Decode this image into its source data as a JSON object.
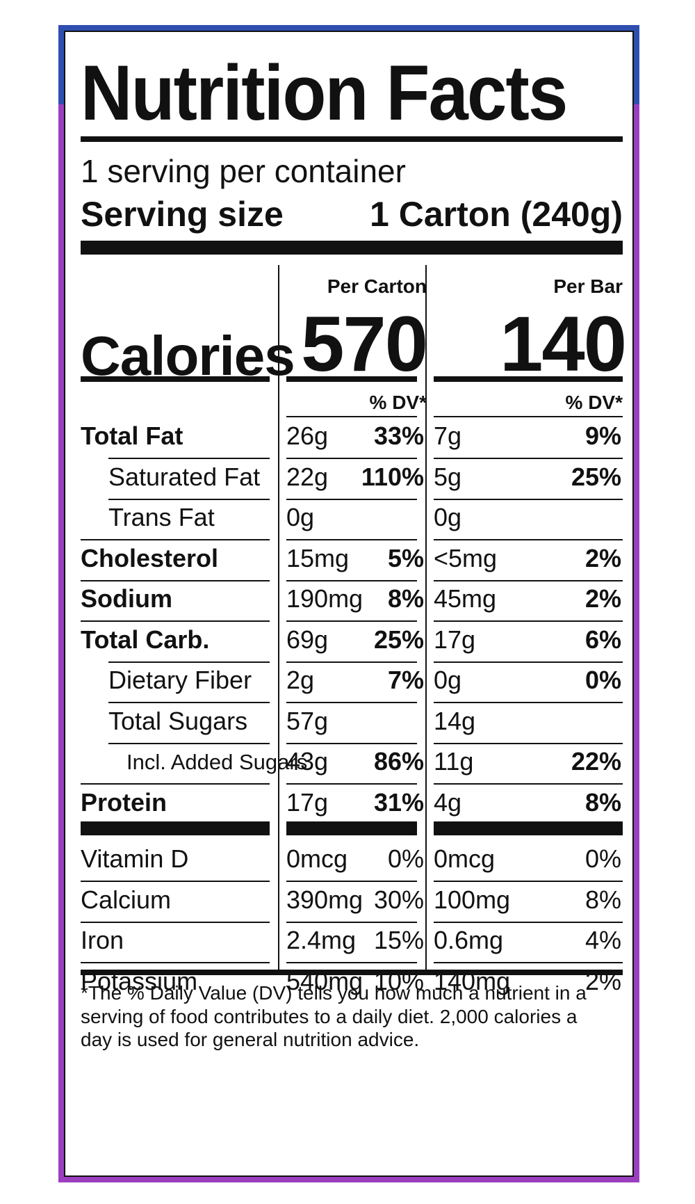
{
  "title": "Nutrition Facts",
  "servings_per_container": "1 serving per container",
  "serving_size": {
    "label": "Serving size",
    "value": "1 Carton (240g)"
  },
  "columns": [
    {
      "heading": "Per Carton",
      "calories": "570",
      "dv_heading": "% DV*"
    },
    {
      "heading": "Per Bar",
      "calories": "140",
      "dv_heading": "% DV*"
    }
  ],
  "calories_label": "Calories",
  "nutrients": [
    {
      "label": "Total Fat",
      "bold": true,
      "indent": 0,
      "carton": {
        "amount": "26g",
        "dv": "33%"
      },
      "bar": {
        "amount": "7g",
        "dv": "9%"
      }
    },
    {
      "label": "Saturated Fat",
      "bold": false,
      "indent": 1,
      "carton": {
        "amount": "22g",
        "dv": "110%"
      },
      "bar": {
        "amount": "5g",
        "dv": "25%"
      }
    },
    {
      "label": "Trans Fat",
      "bold": false,
      "indent": 1,
      "carton": {
        "amount": "0g",
        "dv": ""
      },
      "bar": {
        "amount": "0g",
        "dv": ""
      }
    },
    {
      "label": "Cholesterol",
      "bold": true,
      "indent": 0,
      "carton": {
        "amount": "15mg",
        "dv": "5%"
      },
      "bar": {
        "amount": "<5mg",
        "dv": "2%"
      }
    },
    {
      "label": "Sodium",
      "bold": true,
      "indent": 0,
      "carton": {
        "amount": "190mg",
        "dv": "8%"
      },
      "bar": {
        "amount": "45mg",
        "dv": "2%"
      }
    },
    {
      "label": "Total Carb.",
      "bold": true,
      "indent": 0,
      "carton": {
        "amount": "69g",
        "dv": "25%"
      },
      "bar": {
        "amount": "17g",
        "dv": "6%"
      }
    },
    {
      "label": "Dietary Fiber",
      "bold": false,
      "indent": 1,
      "carton": {
        "amount": "2g",
        "dv": "7%"
      },
      "bar": {
        "amount": "0g",
        "dv": "0%"
      }
    },
    {
      "label": "Total Sugars",
      "bold": false,
      "indent": 1,
      "carton": {
        "amount": "57g",
        "dv": ""
      },
      "bar": {
        "amount": "14g",
        "dv": ""
      }
    },
    {
      "label": "Incl. Added Sugars",
      "bold": false,
      "indent": 2,
      "carton": {
        "amount": "43g",
        "dv": "86%"
      },
      "bar": {
        "amount": "11g",
        "dv": "22%"
      }
    },
    {
      "label": "Protein",
      "bold": true,
      "indent": 0,
      "carton": {
        "amount": "17g",
        "dv": "31%"
      },
      "bar": {
        "amount": "4g",
        "dv": "8%"
      }
    }
  ],
  "vitamins": [
    {
      "label": "Vitamin D",
      "carton": {
        "amount": "0mcg",
        "dv": "0%"
      },
      "bar": {
        "amount": "0mcg",
        "dv": "0%"
      }
    },
    {
      "label": "Calcium",
      "carton": {
        "amount": "390mg",
        "dv": "30%"
      },
      "bar": {
        "amount": "100mg",
        "dv": "8%"
      }
    },
    {
      "label": "Iron",
      "carton": {
        "amount": "2.4mg",
        "dv": "15%"
      },
      "bar": {
        "amount": "0.6mg",
        "dv": "4%"
      }
    },
    {
      "label": "Potassium",
      "carton": {
        "amount": "540mg",
        "dv": "10%"
      },
      "bar": {
        "amount": "140mg",
        "dv": "2%"
      }
    }
  ],
  "footnote": "*The % Daily Value (DV) tells you how much a nutrient in a serving of food contributes to a daily diet. 2,000 calories a day is used for general nutrition advice.",
  "colors": {
    "frame_blue": "#2e4fb0",
    "frame_purple": "#9b3fc0",
    "ink": "#111111"
  }
}
